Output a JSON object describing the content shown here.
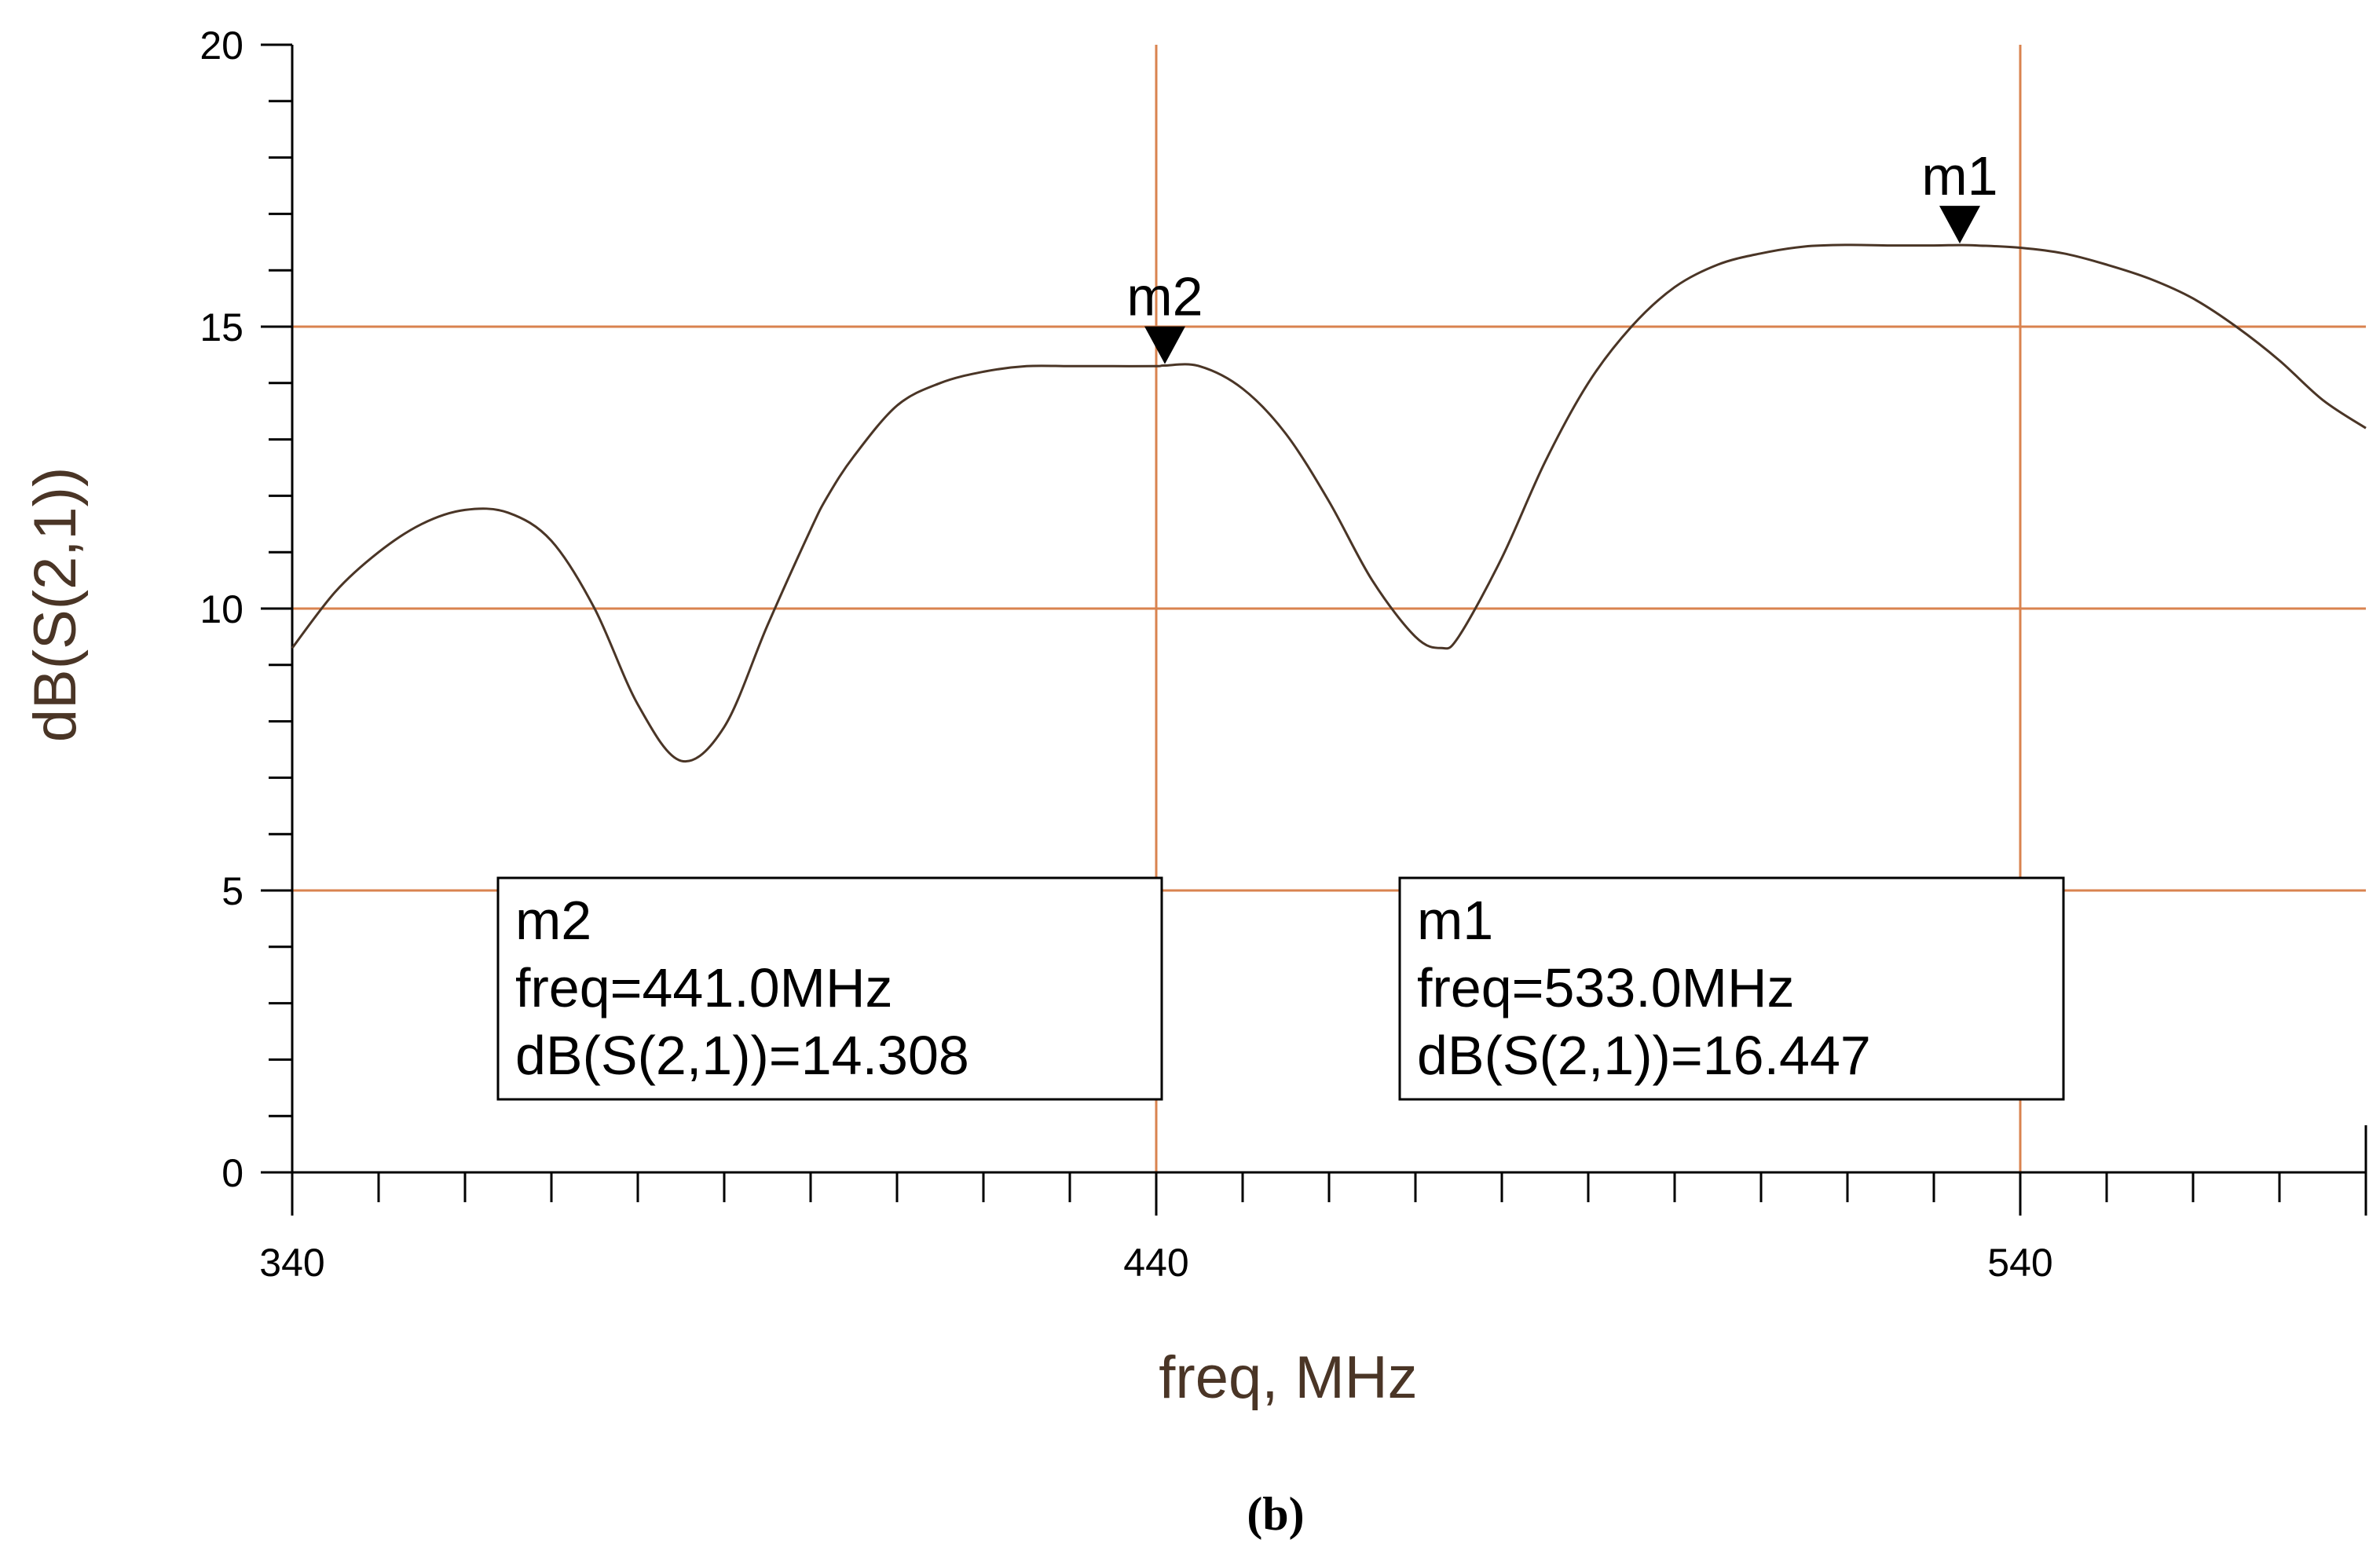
{
  "chart_data": {
    "type": "line",
    "xlabel": "freq, MHz",
    "ylabel": "dB(S(2,1))",
    "xlim": [
      340,
      580
    ],
    "ylim": [
      0,
      20
    ],
    "x_ticks": [
      "340",
      "440",
      "540"
    ],
    "y_ticks": [
      "0",
      "5",
      "10",
      "15",
      "20"
    ],
    "grid": true,
    "colors": {
      "grid": "#d9834f",
      "trace": "#4a3526",
      "text": "#000000",
      "axis_title": "#4a3526"
    },
    "series": [
      {
        "x": [
          340,
          345,
          350,
          355,
          360,
          365,
          370,
          375,
          380,
          385,
          390,
          395,
          400,
          402,
          405,
          410,
          415,
          420,
          425,
          430,
          435,
          440,
          441,
          445,
          450,
          455,
          460,
          465,
          470,
          473,
          475,
          480,
          485,
          490,
          495,
          500,
          505,
          510,
          515,
          520,
          525,
          530,
          533,
          535,
          540,
          545,
          550,
          555,
          560,
          565,
          570,
          575,
          580
        ],
        "y": [
          9.3,
          10.3,
          11.0,
          11.5,
          11.75,
          11.7,
          11.2,
          10.0,
          8.3,
          7.3,
          7.9,
          9.7,
          11.4,
          12.0,
          12.7,
          13.6,
          14.0,
          14.2,
          14.3,
          14.3,
          14.3,
          14.3,
          14.31,
          14.3,
          13.9,
          13.1,
          11.9,
          10.5,
          9.5,
          9.3,
          9.5,
          10.9,
          12.6,
          14.0,
          15.0,
          15.7,
          16.1,
          16.3,
          16.42,
          16.45,
          16.44,
          16.44,
          16.447,
          16.44,
          16.4,
          16.3,
          16.1,
          15.85,
          15.5,
          15.0,
          14.4,
          13.7,
          13.2
        ]
      }
    ],
    "markers": [
      {
        "name": "m1",
        "x": 533.0,
        "y": 16.447,
        "line1": "m1",
        "line2": "freq=533.0MHz",
        "line3": "dB(S(2,1))=16.447"
      },
      {
        "name": "m2",
        "x": 441.0,
        "y": 14.308,
        "line1": "m2",
        "line2": "freq=441.0MHz",
        "line3": "dB(S(2,1))=14.308"
      }
    ]
  },
  "panel_label": "(b)"
}
